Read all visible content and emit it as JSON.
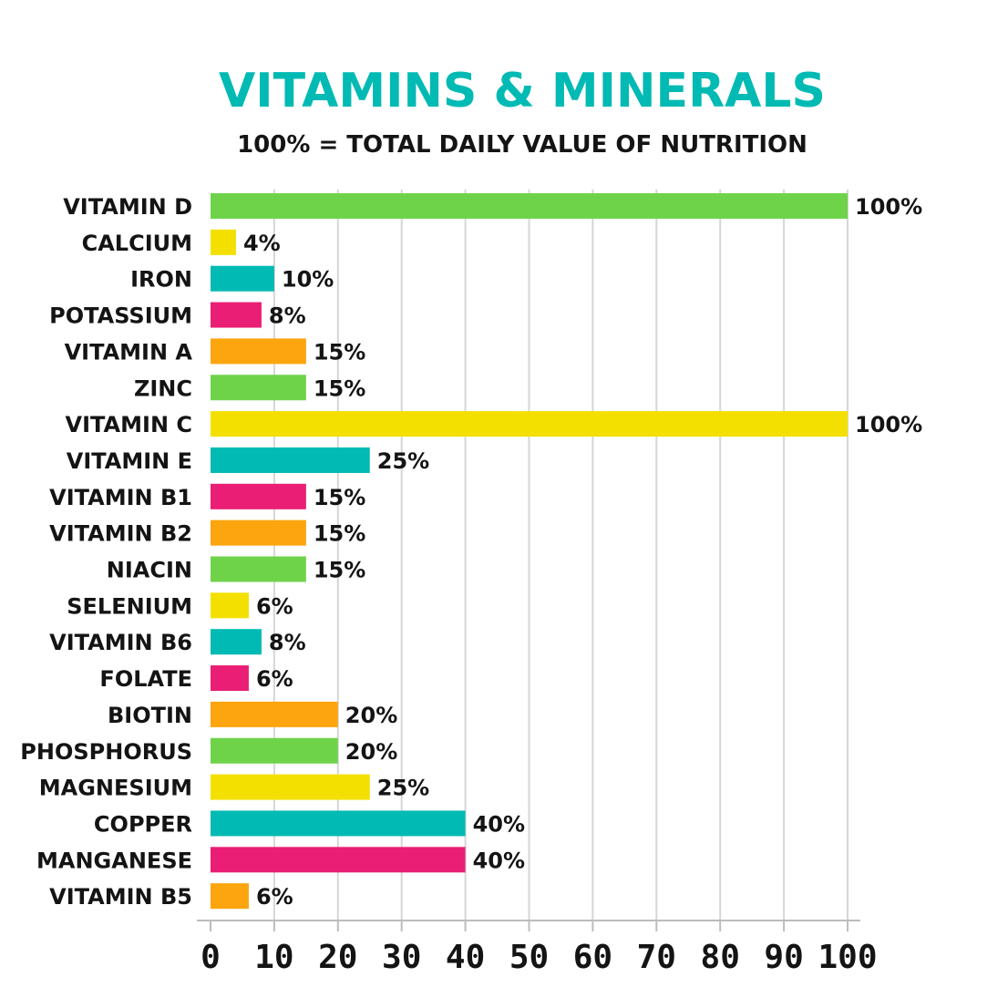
{
  "chart_data": {
    "type": "bar",
    "orientation": "horizontal",
    "title": "VITAMINS & MINERALS",
    "subtitle": "100% = TOTAL DAILY VALUE OF NUTRITION",
    "categories": [
      "VITAMIN D",
      "CALCIUM",
      "IRON",
      "POTASSIUM",
      "VITAMIN A",
      "ZINC",
      "VITAMIN C",
      "VITAMIN E",
      "VITAMIN B1",
      "VITAMIN B2",
      "NIACIN",
      "SELENIUM",
      "VITAMIN B6",
      "FOLATE",
      "BIOTIN",
      "PHOSPHORUS",
      "MAGNESIUM",
      "COPPER",
      "MANGANESE",
      "VITAMIN B5"
    ],
    "values": [
      100,
      4,
      10,
      8,
      15,
      15,
      100,
      25,
      15,
      15,
      15,
      6,
      8,
      6,
      20,
      20,
      25,
      40,
      40,
      6
    ],
    "value_labels": [
      "100%",
      "4%",
      "10%",
      "8%",
      "15%",
      "15%",
      "100%",
      "25%",
      "15%",
      "15%",
      "15%",
      "6%",
      "8%",
      "6%",
      "20%",
      "20%",
      "25%",
      "40%",
      "40%",
      "6%"
    ],
    "bar_colors": [
      "#6fd34a",
      "#f4e000",
      "#00bab3",
      "#e91e74",
      "#fca50e",
      "#6fd34a",
      "#f4e000",
      "#00bab3",
      "#e91e74",
      "#fca50e",
      "#6fd34a",
      "#f4e000",
      "#00bab3",
      "#e91e74",
      "#fca50e",
      "#6fd34a",
      "#f4e000",
      "#00bab3",
      "#e91e74",
      "#fca50e"
    ],
    "xlim": [
      0,
      100
    ],
    "xticks": [
      0,
      10,
      20,
      30,
      40,
      50,
      60,
      70,
      80,
      90,
      100
    ],
    "grid": "vertical",
    "colors": {
      "title": "#00bab3",
      "text": "#141414",
      "grid": "#d6d6d6",
      "axis": "#bdbdbd"
    }
  }
}
